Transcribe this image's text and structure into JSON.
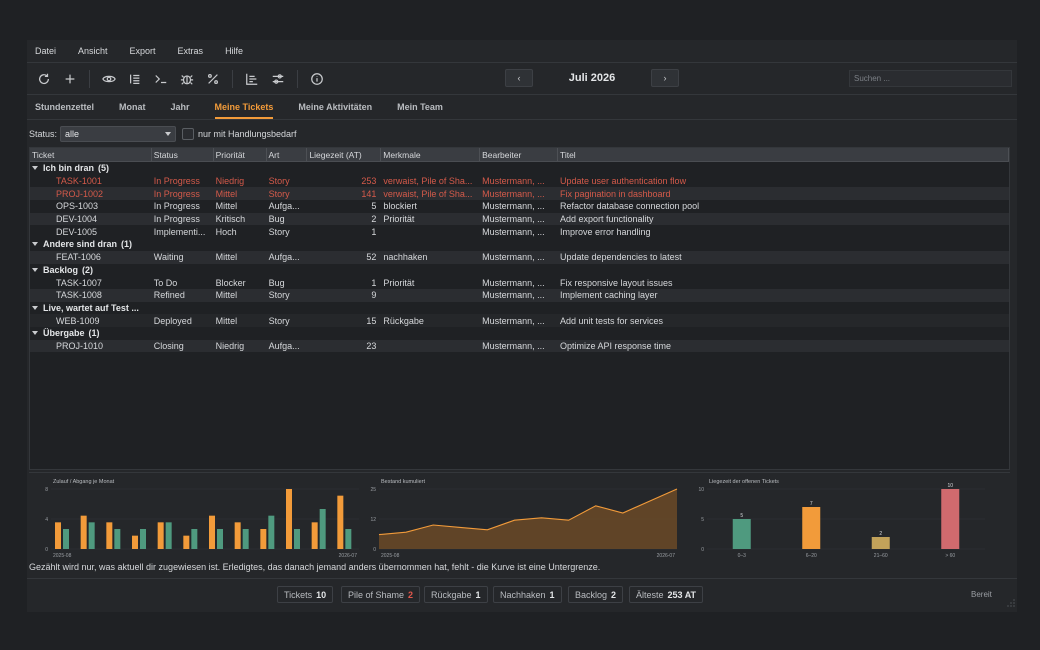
{
  "menu": [
    "Datei",
    "Ansicht",
    "Export",
    "Extras",
    "Hilfe"
  ],
  "toolbar": {
    "icons": [
      "refresh-icon",
      "add-icon",
      "eye-icon",
      "list-icon",
      "terminal-icon",
      "bug-icon",
      "percent-icon",
      "gantt-icon",
      "sliders-icon",
      "info-icon"
    ],
    "prev": "‹",
    "next": "›",
    "month": "Juli 2026",
    "search_placeholder": "Suchen ..."
  },
  "tabs": [
    "Stundenzettel",
    "Monat",
    "Jahr",
    "Meine Tickets",
    "Meine Aktivitäten",
    "Mein Team"
  ],
  "active_tab": "Meine Tickets",
  "filter": {
    "status_label": "Status:",
    "status_value": "alle",
    "checkbox_label": "nur mit Handlungsbedarf",
    "checked": false
  },
  "columns": [
    "Ticket",
    "Status",
    "Priorität",
    "Art",
    "Liegezeit (AT)",
    "Merkmale",
    "Bearbeiter",
    "Titel"
  ],
  "groups": [
    {
      "title": "Ich bin dran",
      "count": "(5)",
      "rows": [
        {
          "ticket": "TASK-1001",
          "status": "In Progress",
          "prio": "Niedrig",
          "art": "Story",
          "age": "253",
          "merkmale": "verwaist, Pile of Sha...",
          "bearbeiter": "Mustermann, ...",
          "titel": "Update user authentication flow",
          "red": true
        },
        {
          "ticket": "PROJ-1002",
          "status": "In Progress",
          "prio": "Mittel",
          "art": "Story",
          "age": "141",
          "merkmale": "verwaist, Pile of Sha...",
          "bearbeiter": "Mustermann, ...",
          "titel": "Fix pagination in dashboard",
          "red": true
        },
        {
          "ticket": "OPS-1003",
          "status": "In Progress",
          "prio": "Mittel",
          "art": "Aufga...",
          "age": "5",
          "merkmale": "blockiert",
          "bearbeiter": "Mustermann, ...",
          "titel": "Refactor database connection pool",
          "red": false
        },
        {
          "ticket": "DEV-1004",
          "status": "In Progress",
          "prio": "Kritisch",
          "art": "Bug",
          "age": "2",
          "merkmale": "Priorität",
          "bearbeiter": "Mustermann, ...",
          "titel": "Add export functionality",
          "red": false
        },
        {
          "ticket": "DEV-1005",
          "status": "Implementi...",
          "prio": "Hoch",
          "art": "Story",
          "age": "1",
          "merkmale": "",
          "bearbeiter": "Mustermann, ...",
          "titel": "Improve error handling",
          "red": false
        }
      ]
    },
    {
      "title": "Andere sind dran",
      "count": "(1)",
      "rows": [
        {
          "ticket": "FEAT-1006",
          "status": "Waiting",
          "prio": "Mittel",
          "art": "Aufga...",
          "age": "52",
          "merkmale": "nachhaken",
          "bearbeiter": "Mustermann, ...",
          "titel": "Update dependencies to latest",
          "red": false
        }
      ]
    },
    {
      "title": "Backlog",
      "count": "(2)",
      "rows": [
        {
          "ticket": "TASK-1007",
          "status": "To Do",
          "prio": "Blocker",
          "art": "Bug",
          "age": "1",
          "merkmale": "Priorität",
          "bearbeiter": "Mustermann, ...",
          "titel": "Fix responsive layout issues",
          "red": false
        },
        {
          "ticket": "TASK-1008",
          "status": "Refined",
          "prio": "Mittel",
          "art": "Story",
          "age": "9",
          "merkmale": "",
          "bearbeiter": "Mustermann, ...",
          "titel": "Implement caching layer",
          "red": false
        }
      ]
    },
    {
      "title": "Live, wartet auf Test ...",
      "count": "",
      "rows": [
        {
          "ticket": "WEB-1009",
          "status": "Deployed",
          "prio": "Mittel",
          "art": "Story",
          "age": "15",
          "merkmale": "Rückgabe",
          "bearbeiter": "Mustermann, ...",
          "titel": "Add unit tests for services",
          "red": false
        }
      ]
    },
    {
      "title": "Übergabe",
      "count": "(1)",
      "rows": [
        {
          "ticket": "PROJ-1010",
          "status": "Closing",
          "prio": "Niedrig",
          "art": "Aufga...",
          "age": "23",
          "merkmale": "",
          "bearbeiter": "Mustermann, ...",
          "titel": "Optimize API response time",
          "red": false
        }
      ]
    }
  ],
  "charts": {
    "inflow": {
      "title": "Zulauf / Abgang je Monat",
      "yticks": [
        "8",
        "4",
        "0"
      ],
      "ymax": 9,
      "x_start": "2025-08",
      "x_end": "2026-07",
      "series": [
        {
          "color": "#f29b3a",
          "values": [
            4,
            5,
            4,
            2,
            4,
            2,
            5,
            4,
            3,
            9,
            4,
            8
          ]
        },
        {
          "color": "#4f9a7f",
          "values": [
            3,
            4,
            3,
            3,
            4,
            3,
            3,
            3,
            5,
            3,
            6,
            3
          ]
        }
      ]
    },
    "stock": {
      "title": "Bestand kumuliert",
      "yticks": [
        "25",
        "12",
        "0"
      ],
      "ymax": 25,
      "x_start": "2025-08",
      "x_end": "2026-07",
      "color": "#f29b3a",
      "values": [
        6,
        7,
        10,
        9,
        8,
        12,
        13,
        12,
        18,
        15,
        20,
        25
      ]
    },
    "age": {
      "title": "Liegezeit der offenen Tickets",
      "yticks": [
        "10",
        "5",
        "0"
      ],
      "ymax": 10,
      "categories": [
        "0–3",
        "6–20",
        "21–60",
        "> 60"
      ],
      "values": [
        5,
        7,
        2,
        10
      ],
      "labels": [
        "5",
        "7",
        "2",
        "10"
      ],
      "colors": [
        "#4f9a7f",
        "#f29b3a",
        "#c2a25a",
        "#d06a6e"
      ]
    }
  },
  "note": "Gezählt wird nur, was aktuell dir zugewiesen ist. Erledigtes, das danach jemand anders übernommen hat, fehlt - die Kurve ist eine Untergrenze.",
  "stats": [
    {
      "label": "Tickets",
      "value": "10",
      "warn": false
    },
    {
      "label": "Pile of Shame",
      "value": "2",
      "warn": true
    },
    {
      "label": "Rückgabe",
      "value": "1",
      "warn": false
    },
    {
      "label": "Nachhaken",
      "value": "1",
      "warn": false
    },
    {
      "label": "Backlog",
      "value": "2",
      "warn": false
    },
    {
      "label": "Älteste",
      "value": "253 AT",
      "warn": false
    }
  ],
  "status_text": "Bereit"
}
